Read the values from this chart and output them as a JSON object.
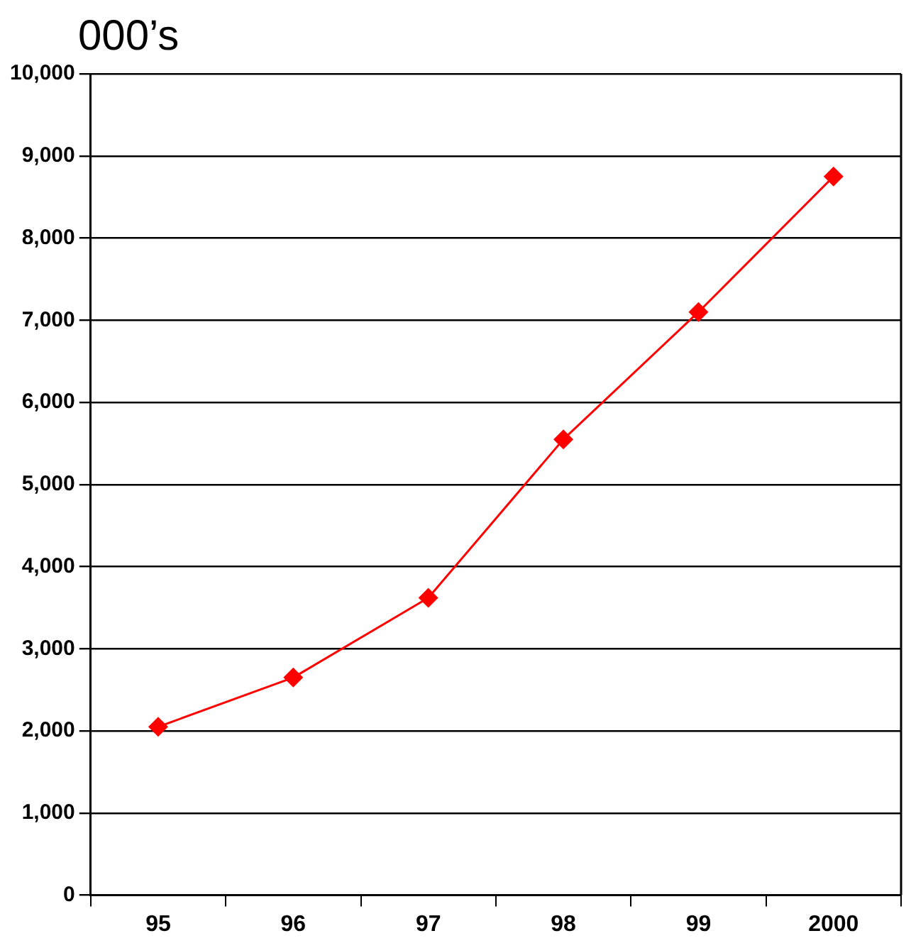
{
  "chart_data": {
    "type": "line",
    "ylabel": "000’s",
    "categories": [
      "95",
      "96",
      "97",
      "98",
      "99",
      "2000"
    ],
    "series": [
      {
        "color": "#ff0000",
        "values": [
          2050,
          2650,
          3620,
          5550,
          7100,
          8750
        ]
      }
    ],
    "ylim": [
      0,
      10000
    ],
    "yticks": [
      {
        "value": 0,
        "label": "0"
      },
      {
        "value": 1000,
        "label": "1,000"
      },
      {
        "value": 2000,
        "label": "2,000"
      },
      {
        "value": 3000,
        "label": "3,000"
      },
      {
        "value": 4000,
        "label": "4,000"
      },
      {
        "value": 5000,
        "label": "5,000"
      },
      {
        "value": 6000,
        "label": "6,000"
      },
      {
        "value": 7000,
        "label": "7,000"
      },
      {
        "value": 8000,
        "label": "8,000"
      },
      {
        "value": 9000,
        "label": "9,000"
      },
      {
        "value": 10000,
        "label": "10,000"
      }
    ],
    "grid": "y",
    "legend": false,
    "marker": "diamond",
    "line_style": "solid"
  }
}
